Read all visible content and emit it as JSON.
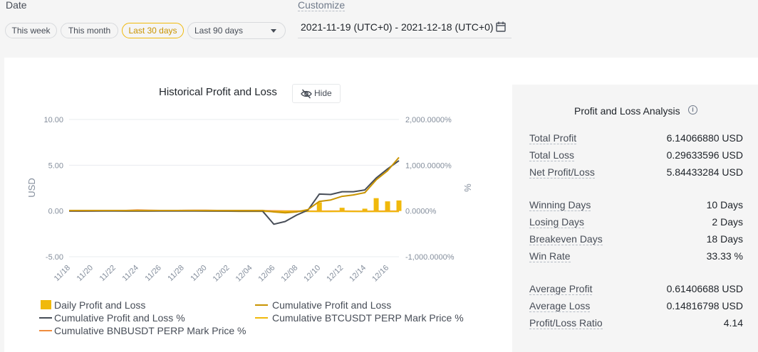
{
  "filters": {
    "date_label": "Date",
    "customize_label": "Customize",
    "this_week": "This week",
    "this_month": "This month",
    "last_30_days": "Last 30 days",
    "last_90_days": "Last 90 days",
    "date_range": "2021-11-19 (UTC+0) - 2021-12-18 (UTC+0)"
  },
  "chart": {
    "title": "Historical Profit and Loss",
    "hide_label": "Hide"
  },
  "chart_data": {
    "type": "line",
    "title": "Historical Profit and Loss",
    "ylabel": "USD",
    "y2label": "%",
    "ylim": [
      -5,
      10
    ],
    "y2lim": [
      -1000,
      2000
    ],
    "yticks": [
      "10.00",
      "5.00",
      "0.00",
      "-5.00"
    ],
    "y2ticks": [
      "2,000.0000%",
      "1,000.0000%",
      "0.0000%",
      "-1,000.0000%"
    ],
    "x": [
      "11/18",
      "11/19",
      "11/20",
      "11/21",
      "11/22",
      "11/23",
      "11/24",
      "11/25",
      "11/26",
      "11/27",
      "11/28",
      "11/29",
      "11/30",
      "12/01",
      "12/02",
      "12/03",
      "12/04",
      "12/05",
      "12/06",
      "12/07",
      "12/08",
      "12/09",
      "12/10",
      "12/11",
      "12/12",
      "12/13",
      "12/14",
      "12/15",
      "12/16",
      "12/17"
    ],
    "x_tick_labels": [
      "11/18",
      "11/20",
      "11/22",
      "11/24",
      "11/26",
      "11/28",
      "11/30",
      "12/02",
      "12/04",
      "12/06",
      "12/08",
      "12/10",
      "12/12",
      "12/14",
      "12/16"
    ],
    "series": [
      {
        "name": "Daily Profit and Loss",
        "kind": "bar",
        "axis": "usd",
        "color": "#f0b90b",
        "values": [
          0,
          0,
          0,
          0,
          0,
          0,
          0,
          0,
          0,
          0,
          0,
          0,
          0,
          0,
          0,
          0,
          0,
          0,
          0,
          0,
          0,
          0,
          0.95,
          0,
          0.35,
          0,
          0.25,
          1.4,
          1.05,
          1.15
        ]
      },
      {
        "name": "Cumulative Profit and Loss",
        "kind": "line",
        "axis": "usd",
        "color": "#c99400",
        "values": [
          0.05,
          0.05,
          0.05,
          0.05,
          0.05,
          0.05,
          0.05,
          0.05,
          0.05,
          0.05,
          0.05,
          0.05,
          0.05,
          0.05,
          0.05,
          0.05,
          0.05,
          0.05,
          -0.1,
          -0.2,
          -0.1,
          0.15,
          1.05,
          1.2,
          1.6,
          1.75,
          2.0,
          3.4,
          4.4,
          5.85
        ]
      },
      {
        "name": "Cumulative Profit and Loss %",
        "kind": "line",
        "axis": "pct",
        "color": "#474d57",
        "values": [
          0,
          0,
          0,
          0,
          0,
          0,
          0,
          0,
          0,
          0,
          0,
          0,
          0,
          0,
          0,
          0,
          0,
          0,
          -290,
          -230,
          -90,
          20,
          370,
          360,
          420,
          420,
          460,
          720,
          920,
          1100
        ]
      },
      {
        "name": "Cumulative BTCUSDT PERP Mark Price %",
        "kind": "line",
        "axis": "pct",
        "color": "#f0b90b",
        "values": [
          10,
          8,
          5,
          3,
          2,
          0,
          -2,
          0,
          3,
          5,
          4,
          2,
          0,
          -3,
          -5,
          -8,
          -8,
          -10,
          -12,
          -11,
          -9,
          -10,
          -11,
          -11,
          -10,
          -12,
          -11,
          -12,
          -11,
          -12
        ]
      },
      {
        "name": "Cumulative BNBUSDT PERP Mark Price %",
        "kind": "line",
        "axis": "pct",
        "color": "#f08c3e",
        "values": [
          0,
          -3,
          -2,
          2,
          5,
          10,
          20,
          15,
          10,
          8,
          12,
          15,
          14,
          10,
          8,
          5,
          6,
          4,
          2,
          0,
          -2,
          -4,
          -5,
          -4,
          -3,
          -5,
          -6,
          -5,
          -4,
          -5
        ]
      }
    ]
  },
  "analysis": {
    "title": "Profit and Loss Analysis",
    "info_icon": "i",
    "rows": [
      {
        "label": "Total Profit",
        "value": "6.14066880 USD"
      },
      {
        "label": "Total Loss",
        "value": "0.29633596 USD"
      },
      {
        "label": "Net Profit/Loss",
        "value": "5.84433284 USD"
      },
      {
        "label": "Winning Days",
        "value": "10 Days"
      },
      {
        "label": "Losing Days",
        "value": "2 Days"
      },
      {
        "label": "Breakeven Days",
        "value": "18 Days"
      },
      {
        "label": "Win Rate",
        "value": "33.33 %"
      },
      {
        "label": "Average Profit",
        "value": "0.61406688 USD"
      },
      {
        "label": "Average Loss",
        "value": "0.14816798 USD"
      },
      {
        "label": "Profit/Loss Ratio",
        "value": "4.14"
      }
    ]
  }
}
